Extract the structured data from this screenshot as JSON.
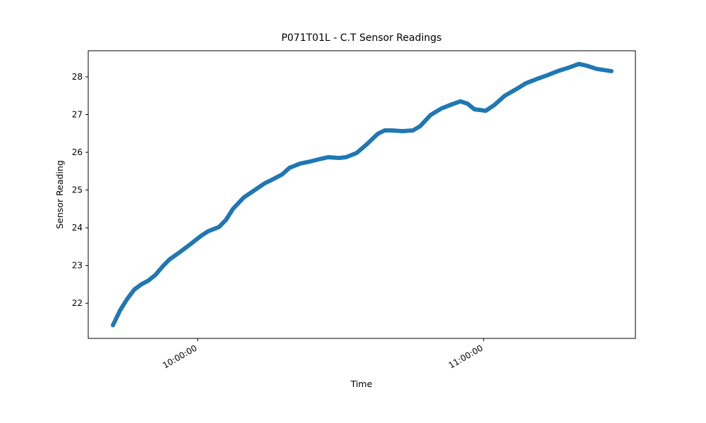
{
  "chart_data": {
    "type": "line",
    "title": "P071T01L - C.T Sensor Readings",
    "x_label": "Time",
    "y_label": "Sensor Reading",
    "series": [
      {
        "color": "#1f77b4",
        "x": [
          "09:42:13",
          "09:43:42",
          "09:45:11",
          "09:46:40",
          "09:48:09",
          "09:49:38",
          "09:51:07",
          "09:52:36",
          "09:54:04",
          "09:56:18",
          "09:58:31",
          "10:00:44",
          "10:02:13",
          "10:04:27",
          "10:05:56",
          "10:07:24",
          "10:09:38",
          "10:11:51",
          "10:14:04",
          "10:15:33",
          "10:17:47",
          "10:19:16",
          "10:21:29",
          "10:23:42",
          "10:25:56",
          "10:27:24",
          "10:29:38",
          "10:31:07",
          "10:33:20",
          "10:35:33",
          "10:37:47",
          "10:39:16",
          "10:40:44",
          "10:42:58",
          "10:45:11",
          "10:46:40",
          "10:48:53",
          "10:51:07",
          "10:53:20",
          "10:55:07",
          "10:56:36",
          "10:58:04",
          "11:00:27",
          "11:02:13",
          "11:04:27",
          "11:06:40",
          "11:08:53",
          "11:11:07",
          "11:13:20",
          "11:15:33",
          "11:17:47",
          "11:20:00",
          "11:21:29",
          "11:23:42",
          "11:26:49"
        ],
        "values": [
          21.42,
          21.81,
          22.11,
          22.36,
          22.5,
          22.6,
          22.75,
          22.97,
          23.16,
          23.36,
          23.57,
          23.79,
          23.91,
          24.02,
          24.21,
          24.5,
          24.8,
          24.99,
          25.18,
          25.27,
          25.42,
          25.59,
          25.7,
          25.76,
          25.83,
          25.87,
          25.85,
          25.87,
          25.98,
          26.22,
          26.49,
          26.58,
          26.58,
          26.56,
          26.58,
          26.69,
          26.99,
          27.16,
          27.27,
          27.35,
          27.29,
          27.14,
          27.1,
          27.25,
          27.5,
          27.66,
          27.83,
          27.94,
          28.04,
          28.15,
          28.24,
          28.34,
          28.3,
          28.21,
          28.15
        ]
      }
    ],
    "xlim": [
      "09:37:02",
      "11:31:51"
    ],
    "xticks": [
      "10:00:00",
      "11:00:00"
    ],
    "ylim": [
      21.07,
      28.69
    ],
    "yticks": [
      22,
      23,
      24,
      25,
      26,
      27,
      28
    ],
    "grid": false
  }
}
